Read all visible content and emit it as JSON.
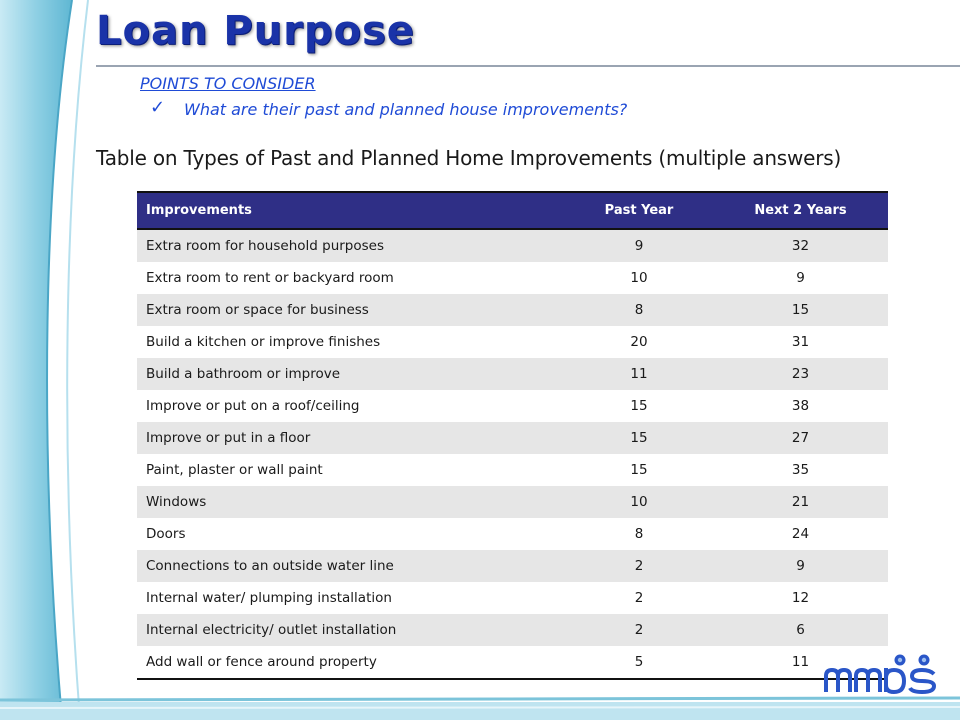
{
  "slide": {
    "title": "Loan Purpose",
    "points_heading": "POINTS TO CONSIDER",
    "points": [
      "What are their past and planned house improvements?"
    ],
    "table_caption": "Table on Types of Past and Planned Home Improvements (multiple answers)"
  },
  "table": {
    "headers": [
      "Improvements",
      "Past Year",
      "Next 2 Years"
    ],
    "rows": [
      [
        "Extra room for household purposes",
        "9",
        "32"
      ],
      [
        "Extra room to rent or backyard room",
        "10",
        "9"
      ],
      [
        "Extra room or space for business",
        "8",
        "15"
      ],
      [
        "Build a kitchen or improve finishes",
        "20",
        "31"
      ],
      [
        "Build a bathroom or improve",
        "11",
        "23"
      ],
      [
        "Improve or put on a roof/ceiling",
        "15",
        "38"
      ],
      [
        "Improve or put in a floor",
        "15",
        "27"
      ],
      [
        "Paint, plaster or wall paint",
        "15",
        "35"
      ],
      [
        "Windows",
        "10",
        "21"
      ],
      [
        "Doors",
        "8",
        "24"
      ],
      [
        "Connections to an outside water line",
        "2",
        "9"
      ],
      [
        "Internal water/ plumping installation",
        "2",
        "12"
      ],
      [
        "Internal electricity/ outlet installation",
        "2",
        "6"
      ],
      [
        "Add wall or fence around property",
        "5",
        "11"
      ]
    ]
  },
  "colors": {
    "title": "#1a33a8",
    "accent_text": "#1f4bd6",
    "table_header_bg": "#2f2f86",
    "row_shade": "#e6e6e6",
    "decor_band": "#8fd0e4"
  },
  "icons": {
    "bullet": "check-icon",
    "logo": "mmbs-logo"
  }
}
